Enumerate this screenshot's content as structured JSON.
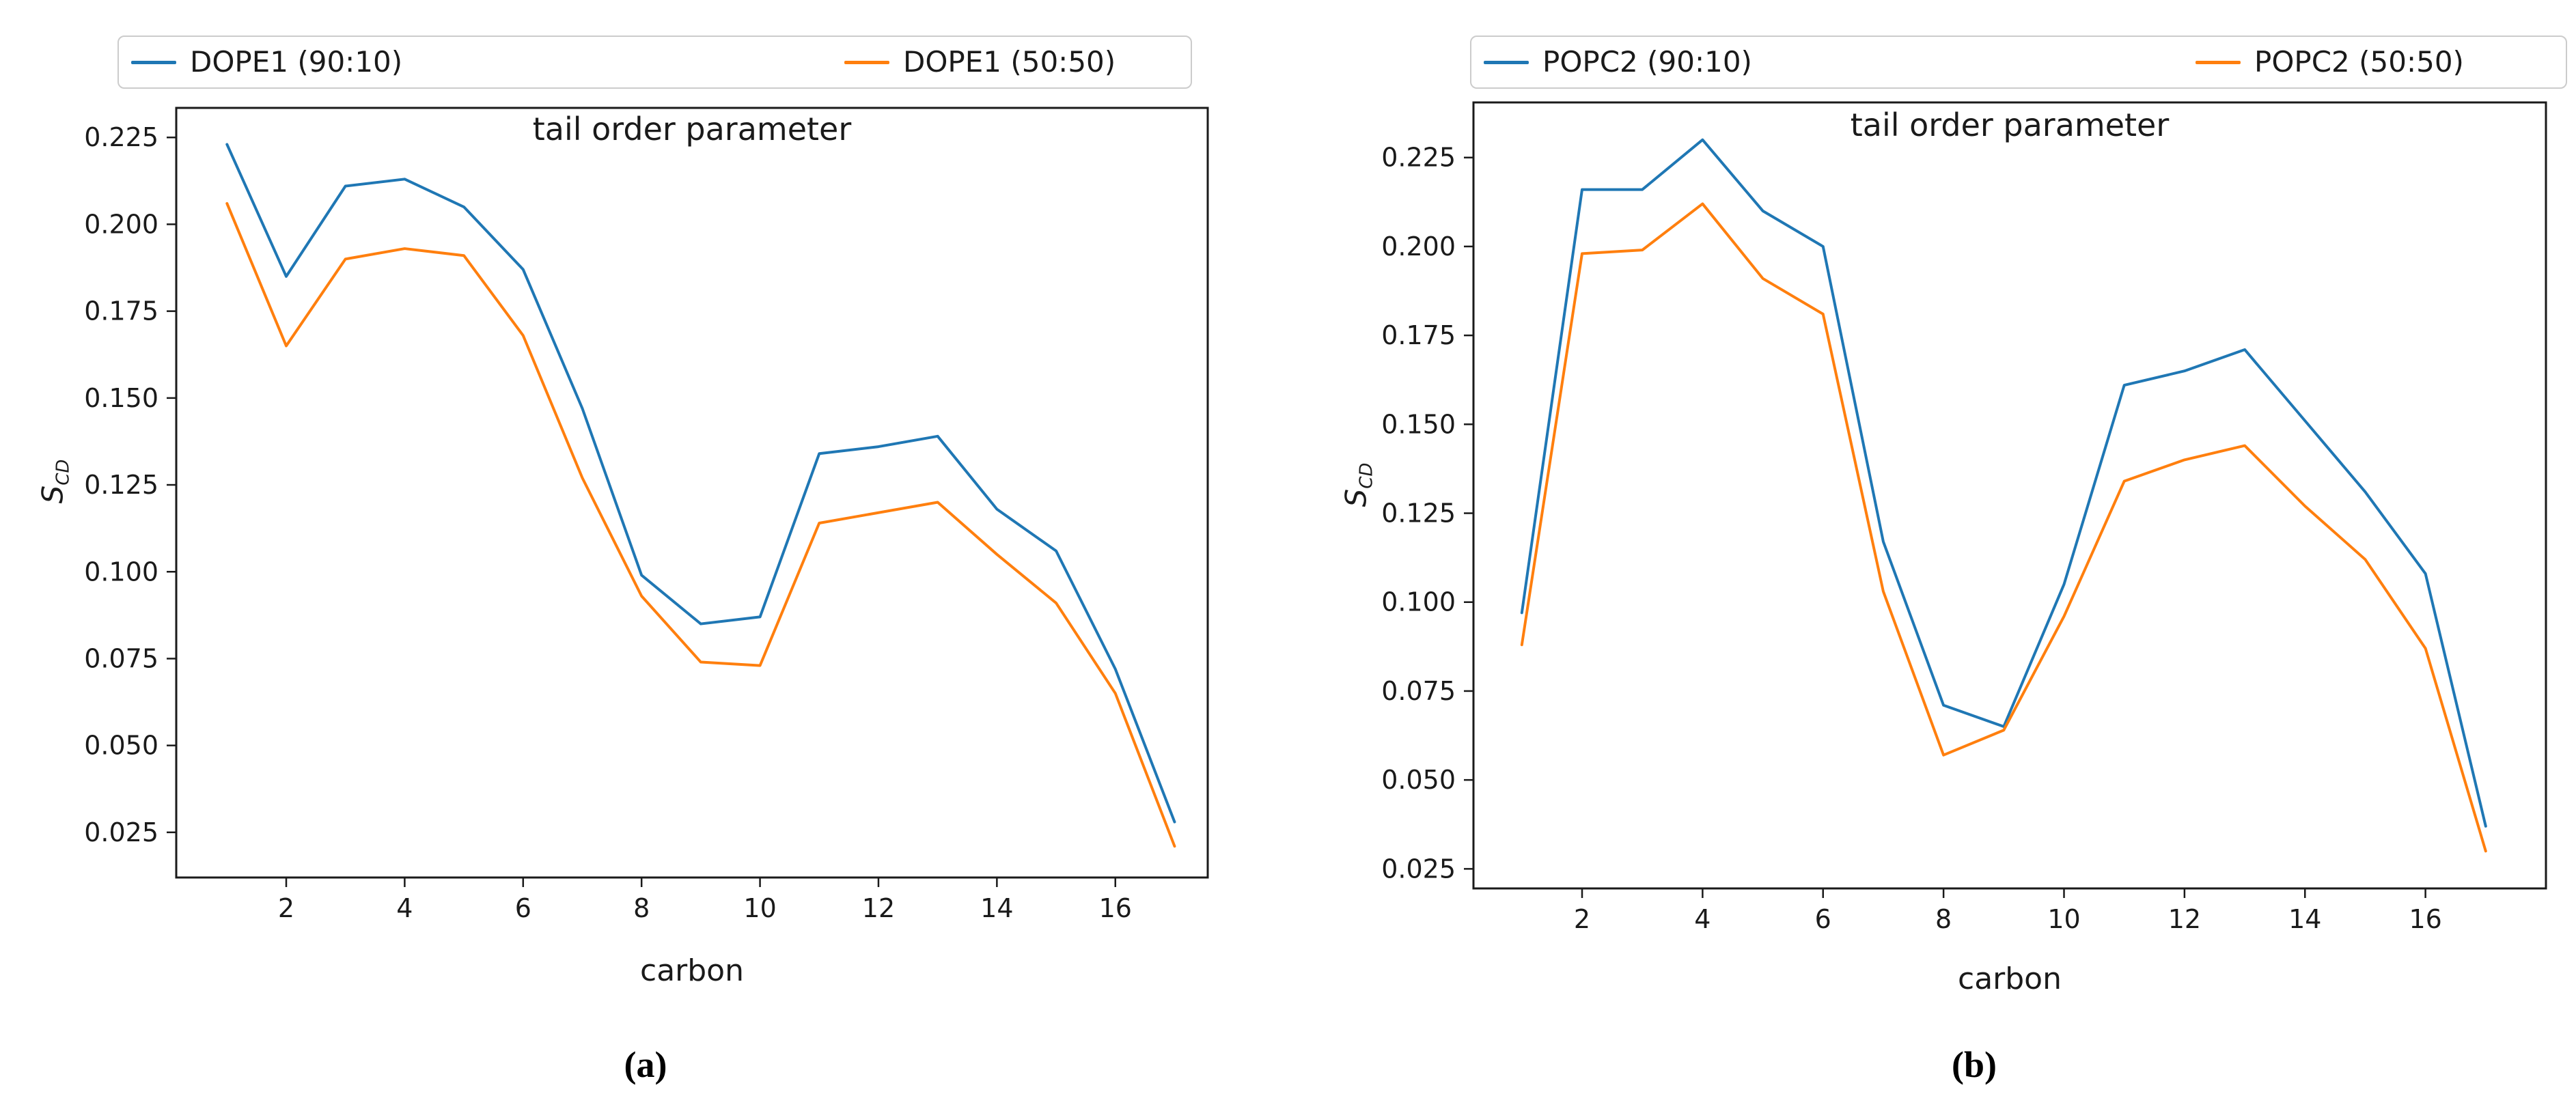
{
  "figure": {
    "background": "#ffffff",
    "text_color": "#1a1a1a",
    "spine_color": "#1a1a1a",
    "panels": [
      {
        "caption": "(a)",
        "ylabel": {
          "base": "S",
          "sub": "CD"
        }
      },
      {
        "caption": "(b)",
        "ylabel": {
          "base": "S",
          "sub": "CD"
        }
      }
    ]
  },
  "chart_data": [
    {
      "type": "line",
      "title": "tail order parameter",
      "xlabel": "carbon",
      "ylabel": "S_CD",
      "grid": false,
      "legend_position": "above",
      "x": [
        1,
        2,
        3,
        4,
        5,
        6,
        7,
        8,
        9,
        10,
        11,
        12,
        13,
        14,
        15,
        16,
        17
      ],
      "xticks": [
        2,
        4,
        6,
        8,
        10,
        12,
        14,
        16
      ],
      "yticks": [
        0.225,
        0.2,
        0.175,
        0.15,
        0.125,
        0.1,
        0.075,
        0.05,
        0.025
      ],
      "xlim": [
        0.143,
        17.56
      ],
      "ylim": [
        0.012,
        0.2335
      ],
      "series": [
        {
          "name": "DOPE1 (90:10)",
          "color": "#1f77b4",
          "values": [
            0.223,
            0.185,
            0.211,
            0.213,
            0.205,
            0.187,
            0.147,
            0.099,
            0.085,
            0.087,
            0.134,
            0.136,
            0.139,
            0.118,
            0.106,
            0.072,
            0.028
          ]
        },
        {
          "name": "DOPE1 (50:50)",
          "color": "#ff7f0e",
          "values": [
            0.206,
            0.165,
            0.19,
            0.193,
            0.191,
            0.168,
            0.127,
            0.093,
            0.074,
            0.073,
            0.114,
            0.117,
            0.12,
            0.105,
            0.091,
            0.065,
            0.021
          ]
        }
      ]
    },
    {
      "type": "line",
      "title": "tail order parameter",
      "xlabel": "carbon",
      "ylabel": "S_CD",
      "grid": false,
      "legend_position": "above",
      "x": [
        1,
        2,
        3,
        4,
        5,
        6,
        7,
        8,
        9,
        10,
        11,
        12,
        13,
        14,
        15,
        16,
        17
      ],
      "xticks": [
        2,
        4,
        6,
        8,
        10,
        12,
        14,
        16
      ],
      "yticks": [
        0.225,
        0.2,
        0.175,
        0.15,
        0.125,
        0.1,
        0.075,
        0.05,
        0.025
      ],
      "xlim": [
        0.197,
        18.0
      ],
      "ylim": [
        0.0195,
        0.2405
      ],
      "series": [
        {
          "name": "POPC2 (90:10)",
          "color": "#1f77b4",
          "values": [
            0.097,
            0.216,
            0.216,
            0.23,
            0.21,
            0.2,
            0.117,
            0.071,
            0.065,
            0.105,
            0.161,
            0.165,
            0.171,
            0.151,
            0.131,
            0.108,
            0.037
          ]
        },
        {
          "name": "POPC2 (50:50)",
          "color": "#ff7f0e",
          "values": [
            0.088,
            0.198,
            0.199,
            0.212,
            0.191,
            0.181,
            0.103,
            0.057,
            0.064,
            0.096,
            0.134,
            0.14,
            0.144,
            0.127,
            0.112,
            0.087,
            0.03
          ]
        }
      ]
    }
  ]
}
